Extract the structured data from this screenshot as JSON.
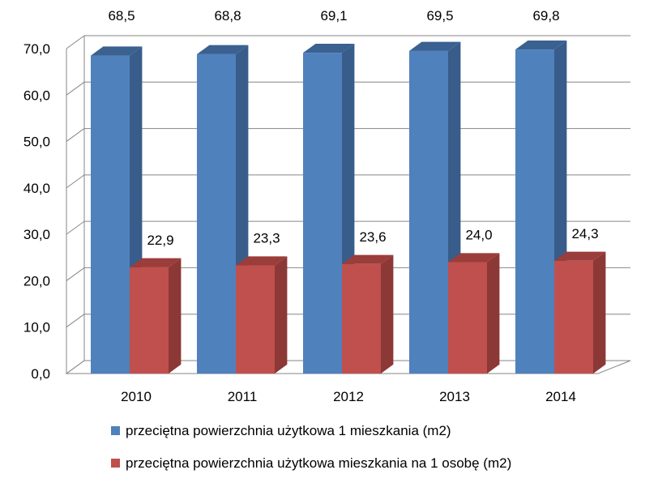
{
  "chart_data": {
    "type": "bar",
    "categories": [
      "2010",
      "2011",
      "2012",
      "2013",
      "2014"
    ],
    "series": [
      {
        "name": "przeciętna powierzchnia użytkowa 1 mieszkania (m2)",
        "values": [
          68.5,
          68.8,
          69.1,
          69.5,
          69.8
        ],
        "labels": [
          "68,5",
          "68,8",
          "69,1",
          "69,5",
          "69,8"
        ],
        "color": "#4f81bd",
        "side_color": "#385d8a",
        "top_color": "#3a6190"
      },
      {
        "name": "przeciętna powierzchnia użytkowa mieszkania na 1 osobę (m2)",
        "values": [
          22.9,
          23.3,
          23.6,
          24.0,
          24.3
        ],
        "labels": [
          "22,9",
          "23,3",
          "23,6",
          "24,0",
          "24,3"
        ],
        "color": "#c0504d",
        "side_color": "#8c3836",
        "top_color": "#9b3d3a"
      }
    ],
    "ylim": [
      0,
      70
    ],
    "yticks": [
      "0,0",
      "10,0",
      "20,0",
      "30,0",
      "40,0",
      "50,0",
      "60,0",
      "70,0"
    ],
    "grid": true,
    "three_d": true,
    "legend_position": "bottom"
  }
}
